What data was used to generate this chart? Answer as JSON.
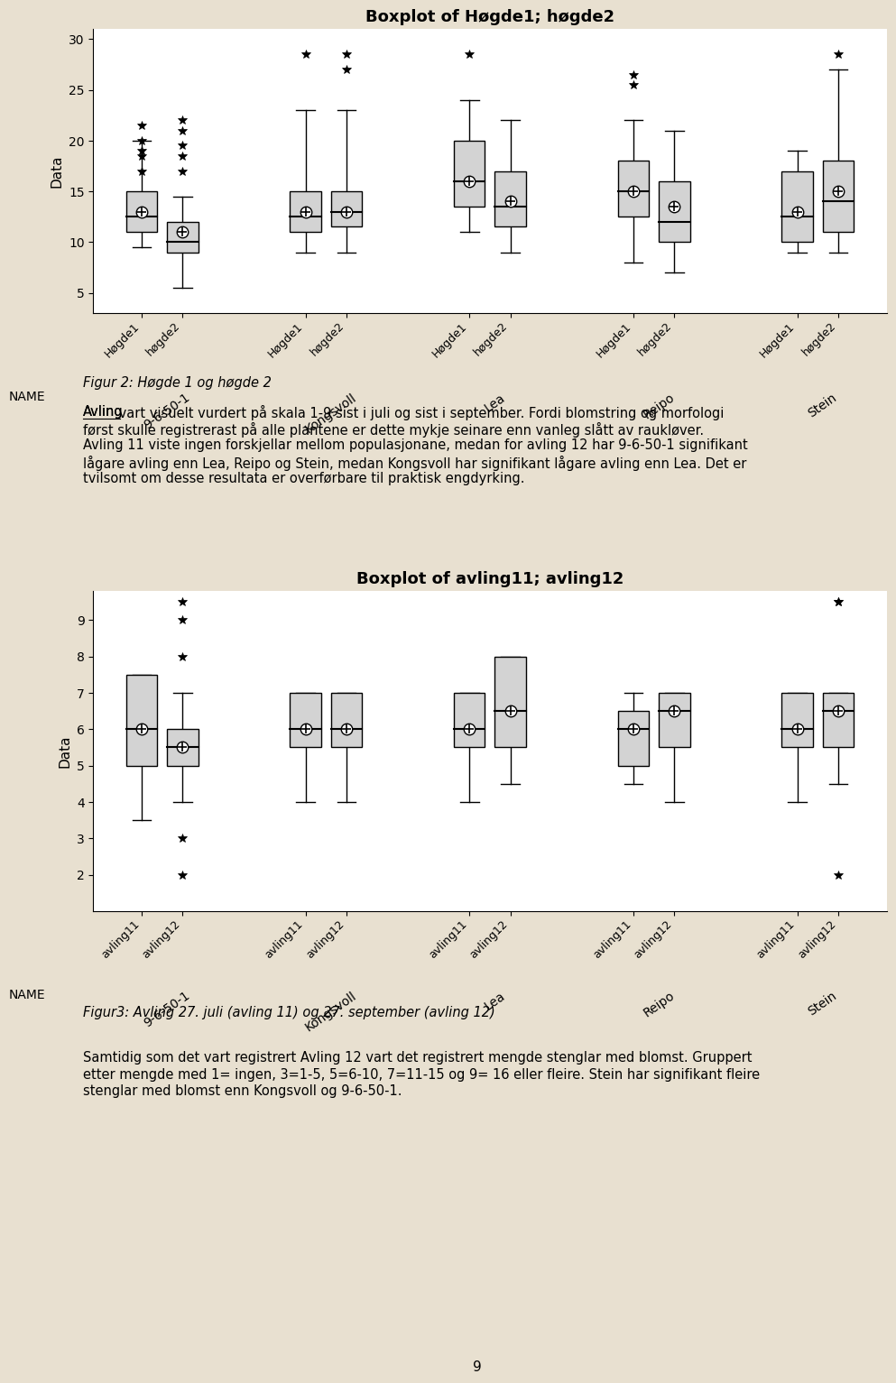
{
  "fig_bg": "#e8e0d0",
  "plot_bg": "#ffffff",
  "box_fill": "#d3d3d3",
  "box_edge": "#000000",
  "plot1": {
    "title": "Boxplot of Høgde1; høgde2",
    "ylabel": "Data",
    "ylim": [
      3,
      31
    ],
    "yticks": [
      5,
      10,
      15,
      20,
      25,
      30
    ],
    "groups": [
      "9-6-50-1",
      "Kongsvoll",
      "Lea",
      "Reipo",
      "Stein"
    ],
    "series": [
      "Høgde1",
      "høgde2"
    ],
    "boxes": [
      {
        "q1": 11,
        "median": 12.5,
        "q3": 15,
        "mean": 13.0,
        "whisker_lo": 9.5,
        "whisker_hi": 20.0,
        "outliers": [
          21.5,
          20.0,
          19.0,
          18.5,
          17.0
        ]
      },
      {
        "q1": 9.0,
        "median": 10.0,
        "q3": 12.0,
        "mean": 11.0,
        "whisker_lo": 5.5,
        "whisker_hi": 14.5,
        "outliers": [
          22.0,
          21.0,
          19.5,
          18.5,
          17.0
        ]
      },
      {
        "q1": 11.0,
        "median": 12.5,
        "q3": 15.0,
        "mean": 13.0,
        "whisker_lo": 9.0,
        "whisker_hi": 23.0,
        "outliers": [
          28.5
        ]
      },
      {
        "q1": 11.5,
        "median": 13.0,
        "q3": 15.0,
        "mean": 13.0,
        "whisker_lo": 9.0,
        "whisker_hi": 23.0,
        "outliers": [
          27.0,
          28.5
        ]
      },
      {
        "q1": 13.5,
        "median": 16.0,
        "q3": 20.0,
        "mean": 16.0,
        "whisker_lo": 11.0,
        "whisker_hi": 24.0,
        "outliers": [
          28.5
        ]
      },
      {
        "q1": 11.5,
        "median": 13.5,
        "q3": 17.0,
        "mean": 14.0,
        "whisker_lo": 9.0,
        "whisker_hi": 22.0,
        "outliers": []
      },
      {
        "q1": 12.5,
        "median": 15.0,
        "q3": 18.0,
        "mean": 15.0,
        "whisker_lo": 8.0,
        "whisker_hi": 22.0,
        "outliers": [
          26.5,
          25.5
        ]
      },
      {
        "q1": 10.0,
        "median": 12.0,
        "q3": 16.0,
        "mean": 13.5,
        "whisker_lo": 7.0,
        "whisker_hi": 21.0,
        "outliers": []
      },
      {
        "q1": 10.0,
        "median": 12.5,
        "q3": 17.0,
        "mean": 13.0,
        "whisker_lo": 9.0,
        "whisker_hi": 19.0,
        "outliers": []
      },
      {
        "q1": 11.0,
        "median": 14.0,
        "q3": 18.0,
        "mean": 15.0,
        "whisker_lo": 9.0,
        "whisker_hi": 27.0,
        "outliers": [
          28.5
        ]
      }
    ]
  },
  "plot2": {
    "title": "Boxplot of avling11; avling12",
    "ylabel": "Data",
    "ylim": [
      1.0,
      9.8
    ],
    "yticks": [
      2,
      3,
      4,
      5,
      6,
      7,
      8,
      9
    ],
    "groups": [
      "9-6-50-1",
      "Kongsvoll",
      "Lea",
      "Reipo",
      "Stein"
    ],
    "series": [
      "avling11",
      "avling12"
    ],
    "boxes": [
      {
        "q1": 5.0,
        "median": 6.0,
        "q3": 7.5,
        "mean": 6.0,
        "whisker_lo": 3.5,
        "whisker_hi": 7.5,
        "outliers": []
      },
      {
        "q1": 5.0,
        "median": 5.5,
        "q3": 6.0,
        "mean": 5.5,
        "whisker_lo": 4.0,
        "whisker_hi": 7.0,
        "outliers": [
          8.0,
          9.0,
          9.5,
          3.0,
          2.0
        ]
      },
      {
        "q1": 5.5,
        "median": 6.0,
        "q3": 7.0,
        "mean": 6.0,
        "whisker_lo": 4.0,
        "whisker_hi": 7.0,
        "outliers": []
      },
      {
        "q1": 5.5,
        "median": 6.0,
        "q3": 7.0,
        "mean": 6.0,
        "whisker_lo": 4.0,
        "whisker_hi": 7.0,
        "outliers": []
      },
      {
        "q1": 5.5,
        "median": 6.0,
        "q3": 7.0,
        "mean": 6.0,
        "whisker_lo": 4.0,
        "whisker_hi": 7.0,
        "outliers": []
      },
      {
        "q1": 5.5,
        "median": 6.5,
        "q3": 8.0,
        "mean": 6.5,
        "whisker_lo": 4.5,
        "whisker_hi": 8.0,
        "outliers": []
      },
      {
        "q1": 5.0,
        "median": 6.0,
        "q3": 6.5,
        "mean": 6.0,
        "whisker_lo": 4.5,
        "whisker_hi": 7.0,
        "outliers": []
      },
      {
        "q1": 5.5,
        "median": 6.5,
        "q3": 7.0,
        "mean": 6.5,
        "whisker_lo": 4.0,
        "whisker_hi": 7.0,
        "outliers": []
      },
      {
        "q1": 5.5,
        "median": 6.0,
        "q3": 7.0,
        "mean": 6.0,
        "whisker_lo": 4.0,
        "whisker_hi": 7.0,
        "outliers": []
      },
      {
        "q1": 5.5,
        "median": 6.5,
        "q3": 7.0,
        "mean": 6.5,
        "whisker_lo": 4.5,
        "whisker_hi": 7.0,
        "outliers": [
          9.5,
          9.5,
          2.0
        ]
      }
    ]
  },
  "caption1": "Figur 2: Høgde 1 og høgde 2",
  "paragraph1_underline": "Avling",
  "paragraph1": "Avling vart visuelt vurdert på skala 1-9 sist i juli og sist i september. Fordi blomstring og morfologi\nførst skulle registrerast på alle plantene er dette mykje seinare enn vanleg slått av raukløver.\nAvling 11 viste ingen forskjellar mellom populasjonane, medan for avling 12 har 9-6-50-1 signifikant\nlågare avling enn Lea, Reipo og Stein, medan Kongsvoll har signifikant lågare avling enn Lea. Det er\ntvilsomt om desse resultata er overførbare til praktisk engdyrking.",
  "caption2": "Figur3: Avling 27. juli (avling 11) og 27. september (avling 12)",
  "paragraph2": "Samtidig som det vart registrert Avling 12 vart det registrert mengde stenglar med blomst. Gruppert\netter mengde med 1= ingen, 3=1-5, 5=6-10, 7=11-15 og 9= 16 eller fleire. Stein har signifikant fleire\nstenglar med blomst enn Kongsvoll og 9-6-50-1.",
  "page_number": "9"
}
